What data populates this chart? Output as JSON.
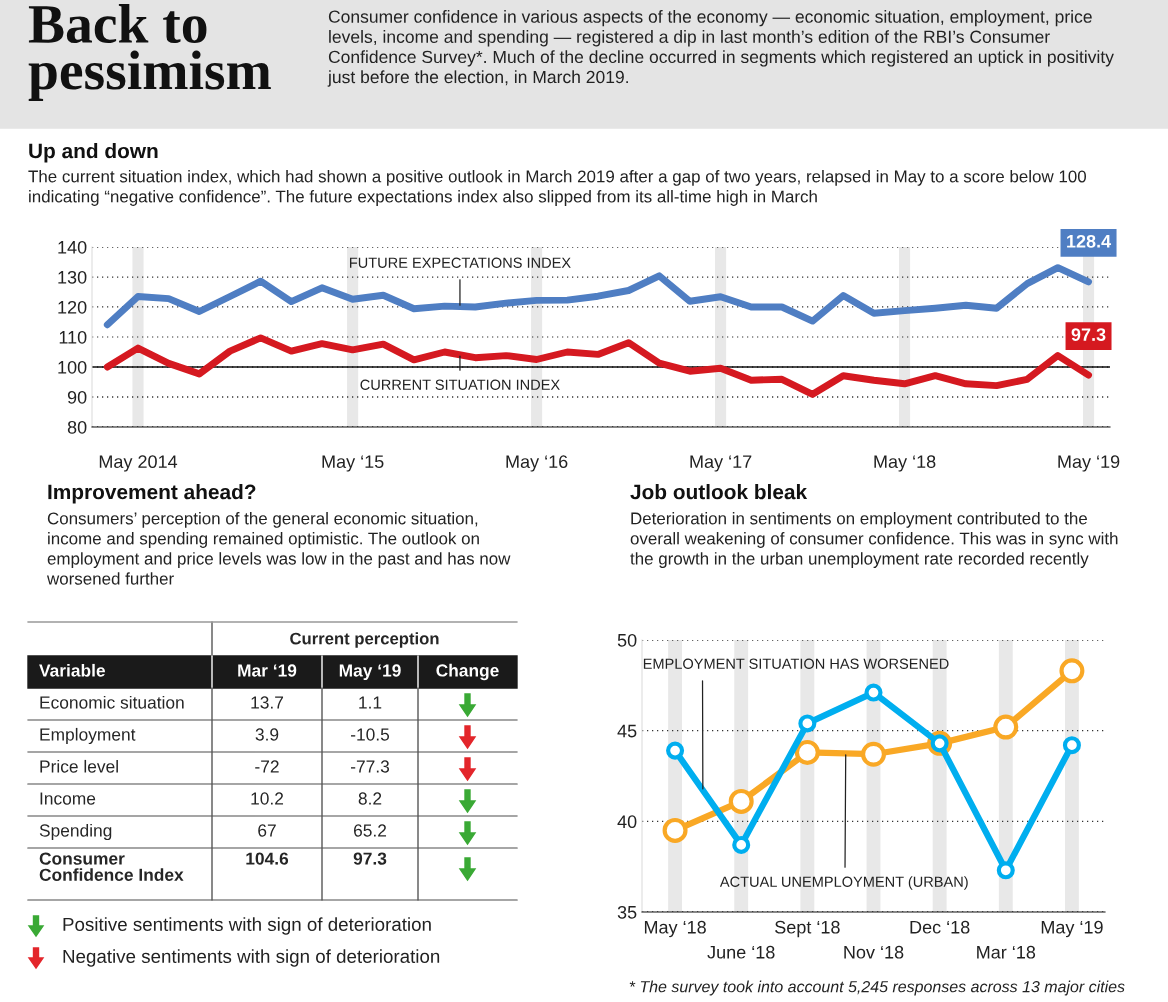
{
  "chart_data": [
    {
      "type": "other",
      "title": "Back to pessimism",
      "subtitle": "Consumer confidence in various aspects of the economy — economic situation, employment, price levels, income and spending — registered a dip in last month’s edition of the RBI’s Consumer Confidence Survey*. Much of the decline occurred in segments which registered an uptick in positivity just before the election, in March 2019."
    },
    {
      "type": "line",
      "title": "Up and down",
      "subtitle": "The current situation index, which had shown a positive outlook in March 2019 after a gap of two years, relapsed in May to a score below 100 indicating “negative confidence”. The future expectations index also slipped from its all-time high in March",
      "categories": [
        null,
        "May 2014",
        null,
        null,
        null,
        null,
        null,
        null,
        "May ‘15",
        null,
        null,
        null,
        null,
        null,
        "May ‘16",
        null,
        null,
        null,
        null,
        null,
        "May ‘17",
        null,
        null,
        null,
        null,
        null,
        "May ‘18",
        null,
        null,
        null,
        null,
        null,
        "May ‘19"
      ],
      "series": [
        {
          "name": "FUTURE EXPECTATIONS INDEX",
          "color": "#4f7ec3",
          "values": [
            114.1,
            123.5,
            122.8,
            118.5,
            123.5,
            128.6,
            121.8,
            126.4,
            122.6,
            123.9,
            119.4,
            120.3,
            120.0,
            121.3,
            122.2,
            122.3,
            123.6,
            125.5,
            130.4,
            121.9,
            123.4,
            120.0,
            120.0,
            115.3,
            123.8,
            117.9,
            118.8,
            119.6,
            120.6,
            119.6,
            127.8,
            133.1,
            128.4
          ],
          "value_labels": [
            null,
            null,
            null,
            null,
            null,
            null,
            null,
            null,
            null,
            null,
            null,
            null,
            null,
            null,
            null,
            null,
            null,
            null,
            null,
            null,
            null,
            null,
            null,
            null,
            null,
            null,
            null,
            null,
            null,
            null,
            null,
            null,
            "128.4"
          ]
        },
        {
          "name": "CURRENT SITUATION INDEX",
          "color": "#d51920",
          "values": [
            100.0,
            106.3,
            101.2,
            97.7,
            105.3,
            109.7,
            105.3,
            107.8,
            105.7,
            107.6,
            102.4,
            105.0,
            103.1,
            103.8,
            102.5,
            105.0,
            104.2,
            108.1,
            101.3,
            98.6,
            99.6,
            95.6,
            95.9,
            90.9,
            97.1,
            95.6,
            94.4,
            97.1,
            94.4,
            93.8,
            95.9,
            103.8,
            97.3
          ],
          "value_labels": [
            null,
            null,
            null,
            null,
            null,
            null,
            null,
            null,
            null,
            null,
            null,
            null,
            null,
            null,
            null,
            null,
            null,
            null,
            null,
            null,
            null,
            null,
            null,
            null,
            null,
            null,
            null,
            null,
            null,
            null,
            null,
            null,
            "97.3"
          ]
        }
      ],
      "ylim": [
        80,
        140
      ],
      "yticks": [
        80,
        90,
        100,
        110,
        120,
        130,
        140
      ],
      "ref_lines": [
        {
          "axis": "y",
          "value": 100
        }
      ],
      "grid": true,
      "legend": false,
      "marker": "none",
      "line_style": "solid"
    },
    {
      "type": "other",
      "title": "Improvement ahead?",
      "subtitle": "Consumers’ perception of the general economic situation, income and spending remained optimistic. The outlook on employment and price levels was low in the past and has now worsened further",
      "categories": [
        "Economic situation",
        "Employment",
        "Price level",
        "Income",
        "Spending",
        "Consumer Confidence Index"
      ],
      "series": [
        {
          "name": "Mar ‘19",
          "values": [
            13.7,
            3.9,
            -72,
            10.2,
            67,
            104.6
          ]
        },
        {
          "name": "May ‘19",
          "values": [
            1.1,
            -10.5,
            -77.3,
            8.2,
            65.2,
            97.3
          ]
        }
      ],
      "colors": [
        "#3aa935",
        "#e3262b",
        "#e3262b",
        "#3aa935",
        "#3aa935",
        "#3aa935"
      ],
      "data_labels": true,
      "annotations": [
        "Current perception",
        "Variable",
        "Change",
        "Positive sentiments with sign of deterioration",
        "Negative sentiments with sign of deterioration"
      ]
    },
    {
      "type": "line",
      "title": "Job outlook bleak",
      "subtitle": "Deterioration in sentiments on employment contributed to the overall weakening of consumer confidence. This was in sync with the growth in the urban unemployment rate recorded recently",
      "categories": [
        "May ‘18",
        "June ‘18",
        "Sept ‘18",
        "Nov ‘18",
        "Dec ‘18",
        "Mar ‘18",
        "May ‘19"
      ],
      "series": [
        {
          "name": "EMPLOYMENT SITUATION HAS WORSENED",
          "color": "#00aeef",
          "values": [
            43.9,
            38.7,
            45.4,
            47.1,
            44.3,
            37.3,
            44.2
          ]
        },
        {
          "name": "ACTUAL UNEMPLOYMENT (URBAN)",
          "color": "#f9a825",
          "values": [
            39.5,
            41.1,
            43.8,
            43.7,
            44.3,
            45.2,
            48.3
          ]
        }
      ],
      "ylim": [
        35,
        50
      ],
      "yticks": [
        35,
        40,
        45,
        50
      ],
      "grid": true,
      "legend": false,
      "marker": "circle",
      "line_style": "solid",
      "annotations": [
        "* The survey took into account 5,245 responses across 13 major cities"
      ]
    }
  ]
}
